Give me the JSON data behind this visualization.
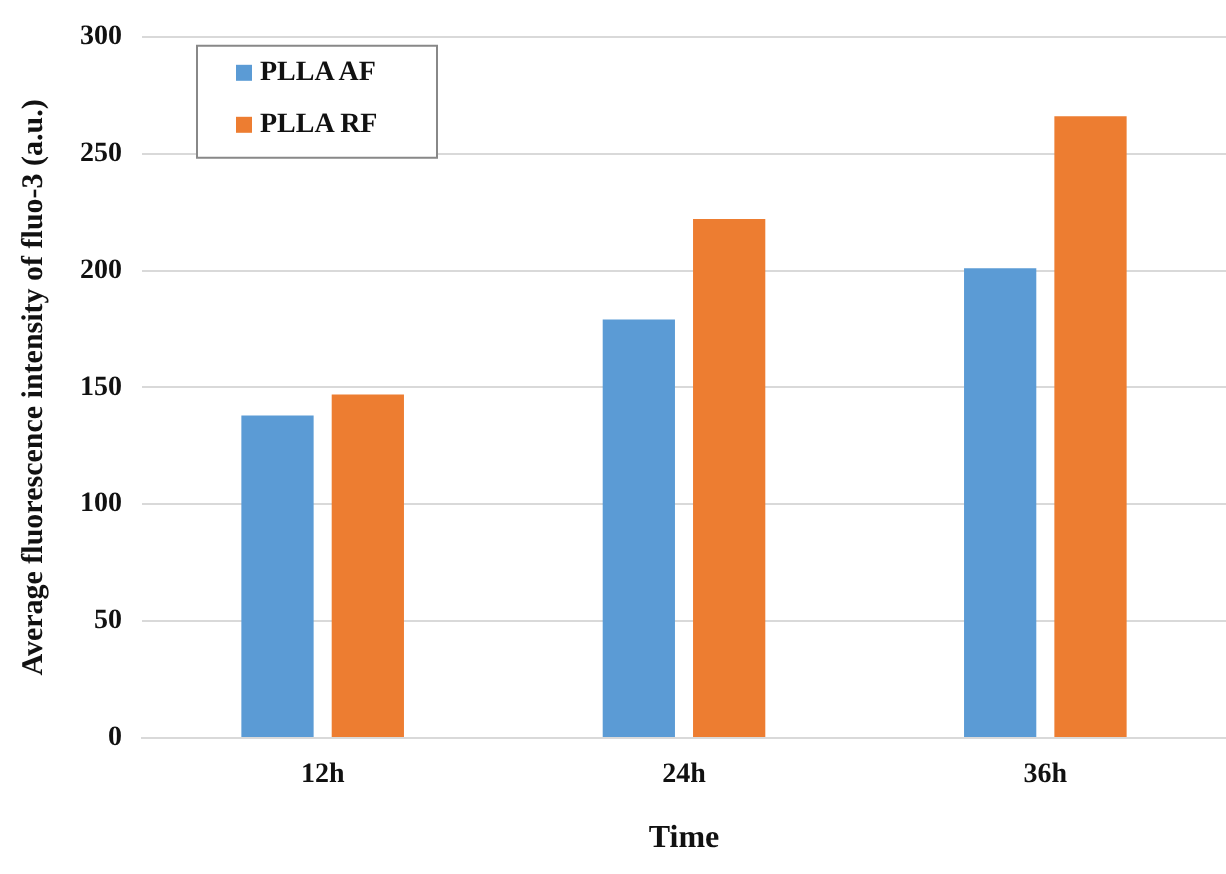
{
  "chart_data": {
    "type": "bar",
    "xlabel": "Time",
    "ylabel": "Average fluorescence intensity of fluo-3 (a.u.)",
    "categories": [
      "12h",
      "24h",
      "36h"
    ],
    "series": [
      {
        "name": "PLLA AF",
        "color": "#5b9bd5",
        "values": [
          138,
          179,
          201
        ]
      },
      {
        "name": "PLLA RF",
        "color": "#ed7d31",
        "values": [
          147,
          222,
          266
        ]
      }
    ],
    "ylim": [
      0,
      300
    ],
    "yticks": [
      0,
      50,
      100,
      150,
      200,
      250,
      300
    ],
    "grid": "y",
    "legend": "top left"
  }
}
